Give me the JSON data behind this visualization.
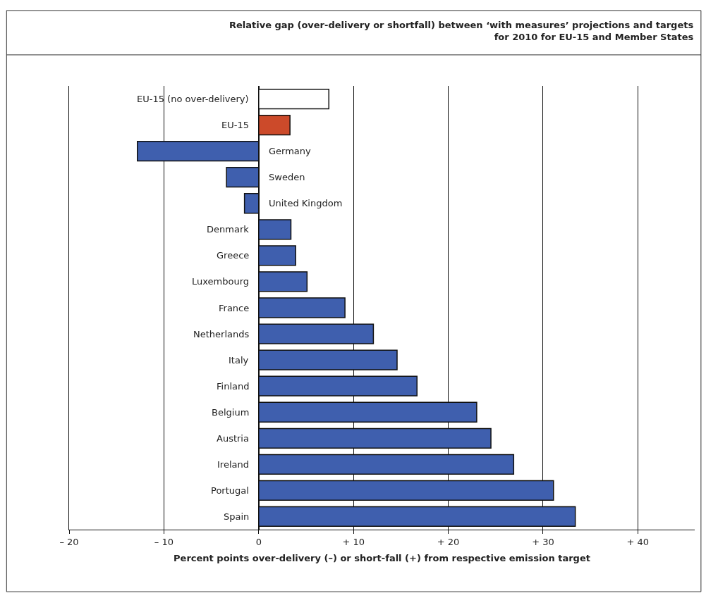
{
  "chart_data": {
    "type": "bar",
    "orientation": "horizontal",
    "title": "Relative gap (over-delivery or shortfall) between ‘with measures’ projections and targets\nfor 2010 for EU-15 and Member States",
    "xlabel": "Percent points over-delivery (–) or short-fall (+) from respective emission target",
    "categories": [
      "EU-15 (no over-delivery)",
      "EU-15",
      "Germany",
      "Sweden",
      "United Kingdom",
      "Denmark",
      "Greece",
      "Luxembourg",
      "France",
      "Netherlands",
      "Italy",
      "Finland",
      "Belgium",
      "Austria",
      "Ireland",
      "Portugal",
      "Spain"
    ],
    "values": [
      7.4,
      3.3,
      -12.8,
      -3.4,
      -1.5,
      3.4,
      3.9,
      5.1,
      9.1,
      12.1,
      14.6,
      16.7,
      23.0,
      24.5,
      26.9,
      31.1,
      33.4
    ],
    "colors": [
      "#ffffff",
      "#cc4a2a",
      "#3f5fae",
      "#3f5fae",
      "#3f5fae",
      "#3f5fae",
      "#3f5fae",
      "#3f5fae",
      "#3f5fae",
      "#3f5fae",
      "#3f5fae",
      "#3f5fae",
      "#3f5fae",
      "#3f5fae",
      "#3f5fae",
      "#3f5fae",
      "#3f5fae"
    ],
    "xlim": [
      -20,
      46
    ],
    "xticks": [
      {
        "value": -20,
        "label": "– 20"
      },
      {
        "value": -10,
        "label": "– 10"
      },
      0,
      {
        "value": 10,
        "label": "+ 10"
      },
      {
        "value": 20,
        "label": "+ 20"
      },
      {
        "value": 30,
        "label": "+ 30"
      },
      {
        "value": 40,
        "label": "+ 40"
      }
    ],
    "grid": "x",
    "tick_labels": "x"
  }
}
